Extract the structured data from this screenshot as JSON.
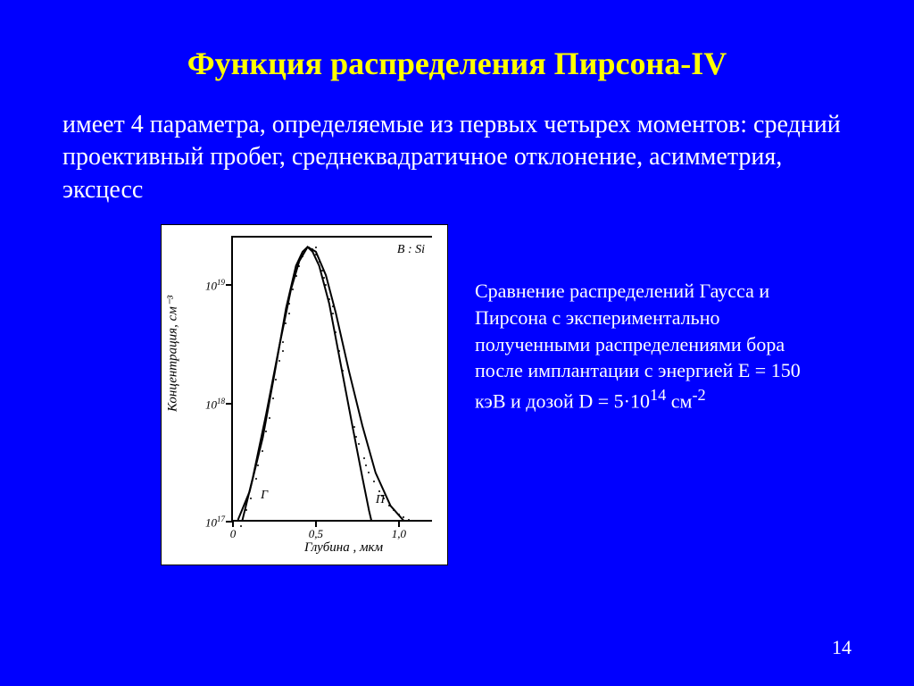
{
  "title": "Функция распределения  Пирсона-IV",
  "body": "имеет 4 параметра, определяемые из первых четырех моментов: средний проективный пробег, среднеквадратичное отклонение, асимметрия, эксцесс",
  "caption_pre": "Сравнение распределений Гаусса и Пирсона с экспериментально полученными распределениями бора после имплантации с энергией E = 150 кэВ и дозой D = 5·10",
  "caption_exp": "14",
  "caption_post": " см",
  "caption_unit_exp": "-2",
  "page_number": "14",
  "chart": {
    "type": "line-with-scatter",
    "background_color": "#ffffff",
    "axis_color": "#000000",
    "y_axis": {
      "label": "Концентрация, см⁻³",
      "scale": "log",
      "ticks": [
        {
          "value_html": "10<sup>17</sup>",
          "frac": 0.0
        },
        {
          "value_html": "10<sup>18</sup>",
          "frac": 0.5
        },
        {
          "value_html": "10<sup>19</sup>",
          "frac": 1.0
        }
      ]
    },
    "x_axis": {
      "label": "Глубина , мкм",
      "scale": "linear",
      "xlim": [
        0,
        1.2
      ],
      "ticks": [
        {
          "label": "0",
          "value": 0
        },
        {
          "label": "0,5",
          "value": 0.5
        },
        {
          "label": "1,0",
          "value": 1.0
        }
      ]
    },
    "annotations": {
      "top_right": "B : Si",
      "gauss_label": "Г",
      "pearson_label": "П"
    },
    "curves": {
      "gauss": {
        "color": "#000000",
        "width": 2,
        "points": [
          [
            0.03,
            0.0
          ],
          [
            0.1,
            0.12
          ],
          [
            0.18,
            0.35
          ],
          [
            0.25,
            0.62
          ],
          [
            0.32,
            0.9
          ],
          [
            0.38,
            1.08
          ],
          [
            0.42,
            1.14
          ],
          [
            0.45,
            1.16
          ],
          [
            0.48,
            1.14
          ],
          [
            0.52,
            1.08
          ],
          [
            0.58,
            0.92
          ],
          [
            0.65,
            0.66
          ],
          [
            0.72,
            0.4
          ],
          [
            0.78,
            0.18
          ],
          [
            0.82,
            0.04
          ],
          [
            0.85,
            -0.05
          ]
        ]
      },
      "pearson": {
        "color": "#000000",
        "width": 2,
        "points": [
          [
            0.04,
            -0.05
          ],
          [
            0.12,
            0.18
          ],
          [
            0.2,
            0.45
          ],
          [
            0.28,
            0.74
          ],
          [
            0.35,
            0.98
          ],
          [
            0.4,
            1.1
          ],
          [
            0.45,
            1.16
          ],
          [
            0.5,
            1.14
          ],
          [
            0.56,
            1.04
          ],
          [
            0.62,
            0.88
          ],
          [
            0.7,
            0.63
          ],
          [
            0.78,
            0.4
          ],
          [
            0.86,
            0.2
          ],
          [
            0.95,
            0.06
          ],
          [
            1.05,
            -0.02
          ]
        ]
      }
    },
    "scatter": {
      "color": "#000000",
      "points": [
        [
          0.05,
          -0.02
        ],
        [
          0.08,
          0.05
        ],
        [
          0.11,
          0.1
        ],
        [
          0.14,
          0.18
        ],
        [
          0.15,
          0.24
        ],
        [
          0.18,
          0.3
        ],
        [
          0.2,
          0.38
        ],
        [
          0.22,
          0.44
        ],
        [
          0.24,
          0.52
        ],
        [
          0.26,
          0.6
        ],
        [
          0.28,
          0.68
        ],
        [
          0.3,
          0.76
        ],
        [
          0.32,
          0.84
        ],
        [
          0.34,
          0.92
        ],
        [
          0.36,
          0.98
        ],
        [
          0.38,
          1.04
        ],
        [
          0.4,
          1.08
        ],
        [
          0.42,
          1.12
        ],
        [
          0.44,
          1.15
        ],
        [
          0.46,
          1.16
        ],
        [
          0.48,
          1.15
        ],
        [
          0.5,
          1.13
        ],
        [
          0.52,
          1.1
        ],
        [
          0.54,
          1.06
        ],
        [
          0.56,
          1.0
        ],
        [
          0.58,
          0.94
        ],
        [
          0.6,
          0.88
        ],
        [
          0.62,
          0.8
        ],
        [
          0.64,
          0.72
        ],
        [
          0.66,
          0.64
        ],
        [
          0.68,
          0.56
        ],
        [
          0.7,
          0.48
        ],
        [
          0.73,
          0.4
        ],
        [
          0.76,
          0.33
        ],
        [
          0.79,
          0.27
        ],
        [
          0.82,
          0.21
        ],
        [
          0.85,
          0.17
        ],
        [
          0.88,
          0.13
        ],
        [
          0.91,
          0.1
        ],
        [
          0.94,
          0.07
        ],
        [
          0.97,
          0.05
        ],
        [
          1.0,
          0.03
        ],
        [
          1.03,
          0.02
        ],
        [
          1.06,
          0.01
        ],
        [
          0.3,
          0.72
        ],
        [
          0.34,
          0.88
        ],
        [
          0.5,
          1.16
        ],
        [
          0.55,
          1.03
        ],
        [
          0.6,
          0.91
        ],
        [
          0.74,
          0.36
        ],
        [
          0.8,
          0.24
        ],
        [
          0.9,
          0.11
        ]
      ]
    }
  },
  "colors": {
    "slide_bg": "#0000ff",
    "title": "#ffff00",
    "text": "#ffffff"
  },
  "fonts": {
    "title_size_pt": 36,
    "body_size_pt": 28,
    "caption_size_pt": 22,
    "chart_label_size_pt": 15
  }
}
